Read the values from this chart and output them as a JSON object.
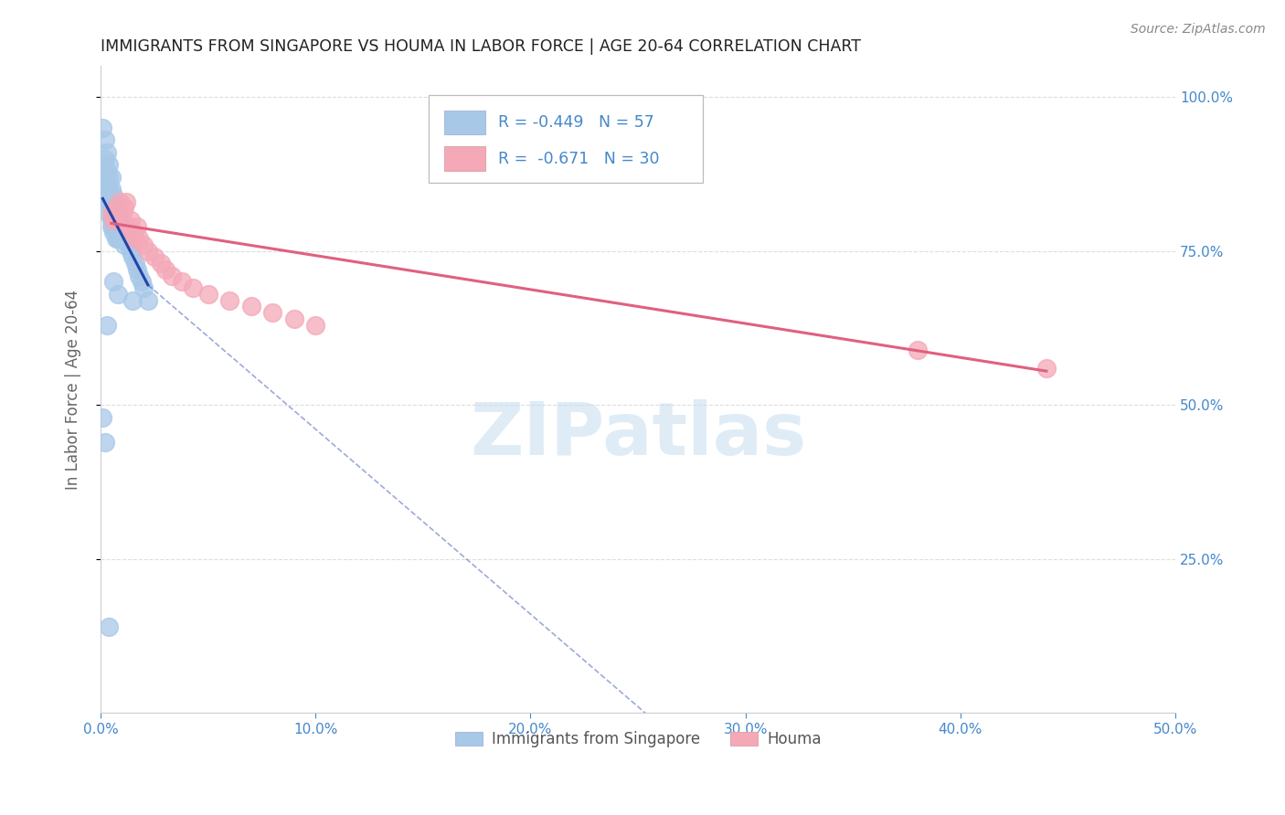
{
  "title": "IMMIGRANTS FROM SINGAPORE VS HOUMA IN LABOR FORCE | AGE 20-64 CORRELATION CHART",
  "source": "Source: ZipAtlas.com",
  "ylabel": "In Labor Force | Age 20-64",
  "ytick_labels": [
    "100.0%",
    "75.0%",
    "50.0%",
    "25.0%"
  ],
  "ytick_values": [
    1.0,
    0.75,
    0.5,
    0.25
  ],
  "xlim": [
    0.0,
    0.5
  ],
  "ylim": [
    0.0,
    1.05
  ],
  "xtick_values": [
    0.0,
    0.1,
    0.2,
    0.3,
    0.4,
    0.5
  ],
  "xtick_labels": [
    "0.0%",
    "10.0%",
    "20.0%",
    "30.0%",
    "40.0%",
    "50.0%"
  ],
  "watermark_text": "ZIPatlas",
  "legend_singapore_text": "R = -0.449   N = 57",
  "legend_houma_text": "R =  -0.671   N = 30",
  "legend_label_singapore": "Immigrants from Singapore",
  "legend_label_houma": "Houma",
  "singapore_color": "#a8c8e8",
  "houma_color": "#f4a8b8",
  "singapore_line_color": "#2244aa",
  "houma_line_color": "#e06080",
  "axis_label_color": "#4488cc",
  "grid_color": "#dddddd",
  "singapore_x": [
    0.001,
    0.002,
    0.002,
    0.002,
    0.003,
    0.003,
    0.003,
    0.003,
    0.004,
    0.004,
    0.004,
    0.004,
    0.004,
    0.005,
    0.005,
    0.005,
    0.005,
    0.005,
    0.005,
    0.006,
    0.006,
    0.006,
    0.006,
    0.006,
    0.007,
    0.007,
    0.007,
    0.007,
    0.007,
    0.008,
    0.008,
    0.008,
    0.008,
    0.009,
    0.009,
    0.009,
    0.01,
    0.01,
    0.011,
    0.011,
    0.012,
    0.013,
    0.014,
    0.015,
    0.016,
    0.017,
    0.018,
    0.019,
    0.02,
    0.022,
    0.001,
    0.002,
    0.003,
    0.004,
    0.006,
    0.008,
    0.015
  ],
  "singapore_y": [
    0.95,
    0.93,
    0.9,
    0.87,
    0.91,
    0.88,
    0.86,
    0.84,
    0.89,
    0.87,
    0.85,
    0.83,
    0.81,
    0.87,
    0.85,
    0.83,
    0.82,
    0.8,
    0.79,
    0.84,
    0.83,
    0.81,
    0.79,
    0.78,
    0.82,
    0.81,
    0.79,
    0.78,
    0.77,
    0.81,
    0.8,
    0.78,
    0.77,
    0.8,
    0.78,
    0.77,
    0.79,
    0.77,
    0.78,
    0.76,
    0.77,
    0.76,
    0.75,
    0.74,
    0.73,
    0.72,
    0.71,
    0.7,
    0.69,
    0.67,
    0.48,
    0.44,
    0.63,
    0.14,
    0.7,
    0.68,
    0.67
  ],
  "houma_x": [
    0.005,
    0.006,
    0.007,
    0.008,
    0.009,
    0.01,
    0.011,
    0.012,
    0.013,
    0.014,
    0.015,
    0.016,
    0.017,
    0.018,
    0.02,
    0.022,
    0.025,
    0.028,
    0.03,
    0.033,
    0.038,
    0.043,
    0.05,
    0.06,
    0.07,
    0.08,
    0.09,
    0.1,
    0.38,
    0.44
  ],
  "houma_y": [
    0.81,
    0.8,
    0.82,
    0.8,
    0.83,
    0.81,
    0.82,
    0.83,
    0.79,
    0.8,
    0.78,
    0.77,
    0.79,
    0.77,
    0.76,
    0.75,
    0.74,
    0.73,
    0.72,
    0.71,
    0.7,
    0.69,
    0.68,
    0.67,
    0.66,
    0.65,
    0.64,
    0.63,
    0.59,
    0.56
  ],
  "sg_regline_x": [
    0.001,
    0.022
  ],
  "sg_regline_y": [
    0.835,
    0.695
  ],
  "sg_dashline_x": [
    0.022,
    0.32
  ],
  "sg_dashline_y": [
    0.695,
    -0.2
  ],
  "ho_regline_x": [
    0.005,
    0.44
  ],
  "ho_regline_y": [
    0.795,
    0.555
  ]
}
